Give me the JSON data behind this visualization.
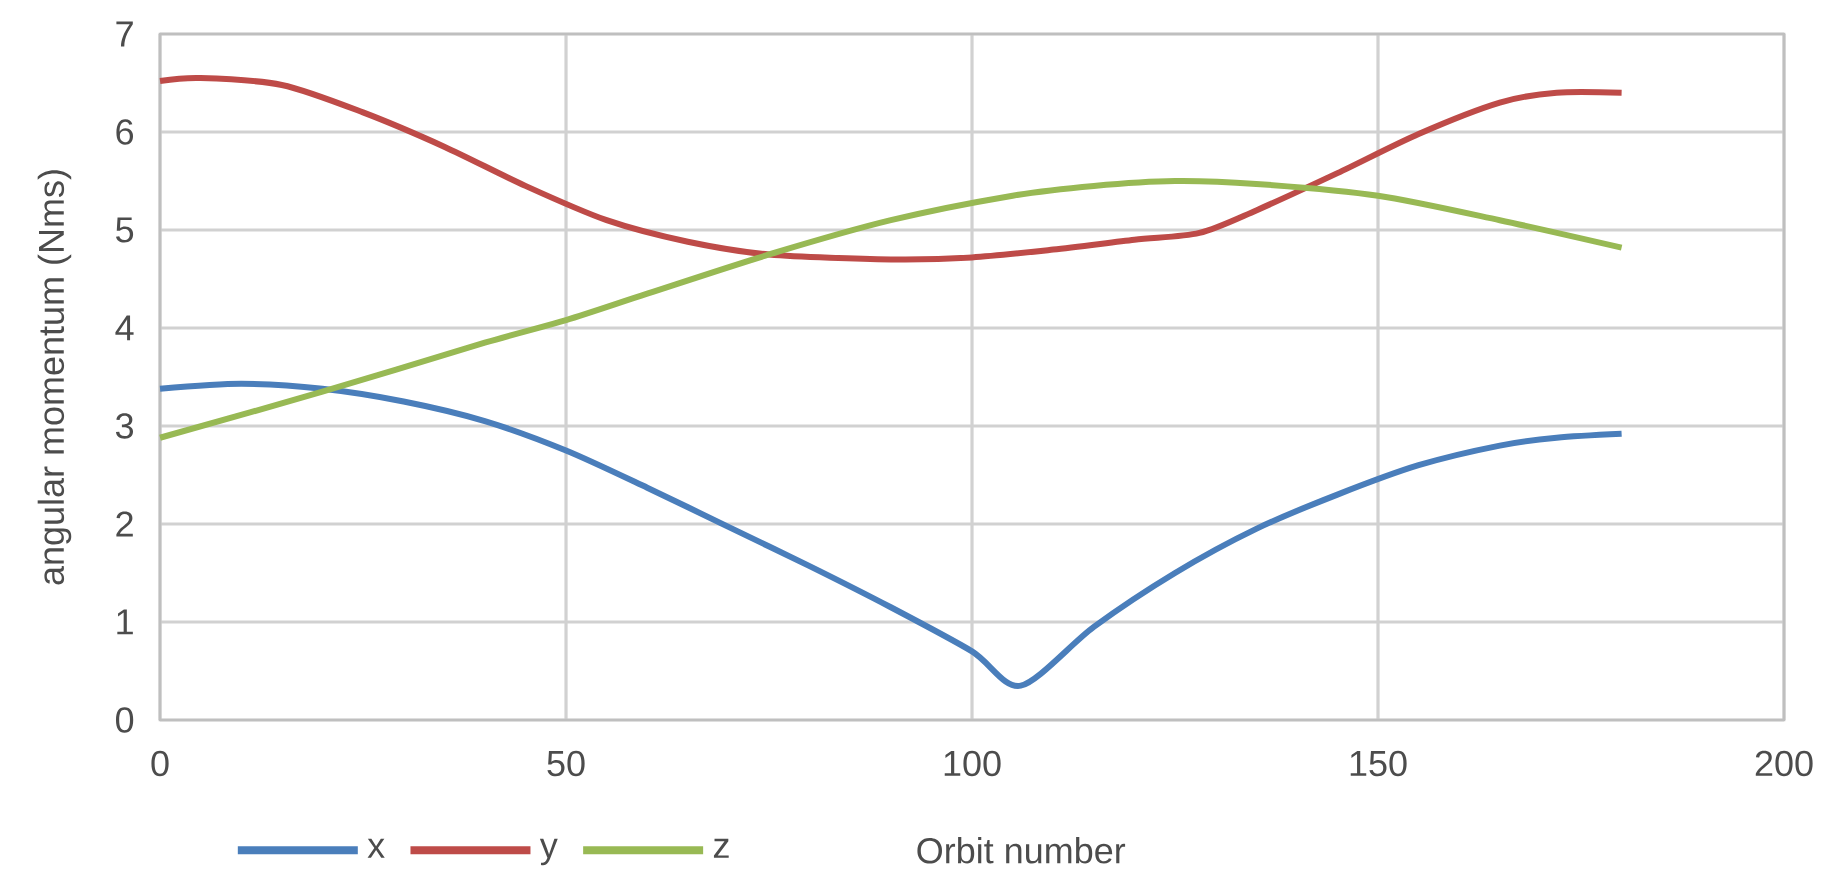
{
  "chart_data": {
    "type": "line",
    "xlabel": "Orbit number",
    "ylabel": "angular momentum (Nms)",
    "xlim": [
      0,
      200
    ],
    "xticks": [
      0,
      50,
      100,
      150,
      200
    ],
    "ylim": [
      0,
      7
    ],
    "yticks": [
      0,
      1,
      2,
      3,
      4,
      5,
      6,
      7
    ],
    "grid": true,
    "legend": "bottom",
    "marker": "none",
    "line_style": "solid",
    "series": [
      {
        "name": "x",
        "color": "#4a7ebb",
        "x": [
          0,
          10,
          20,
          30,
          40,
          50,
          60,
          70,
          80,
          90,
          100,
          106,
          115,
          125,
          135,
          145,
          155,
          165,
          172,
          180
        ],
        "values": [
          3.38,
          3.43,
          3.38,
          3.25,
          3.05,
          2.75,
          2.37,
          1.97,
          1.57,
          1.15,
          0.7,
          0.35,
          0.95,
          1.5,
          1.95,
          2.3,
          2.6,
          2.8,
          2.88,
          2.92
        ]
      },
      {
        "name": "y",
        "color": "#be4b48",
        "x": [
          0,
          5,
          15,
          25,
          35,
          45,
          55,
          65,
          75,
          90,
          100,
          110,
          120,
          128,
          135,
          145,
          155,
          165,
          172,
          180
        ],
        "values": [
          6.52,
          6.55,
          6.48,
          6.2,
          5.85,
          5.45,
          5.1,
          4.88,
          4.75,
          4.7,
          4.72,
          4.8,
          4.9,
          4.97,
          5.2,
          5.58,
          5.98,
          6.3,
          6.4,
          6.4
        ]
      },
      {
        "name": "z",
        "color": "#98b954",
        "x": [
          0,
          20,
          40,
          50,
          60,
          75,
          90,
          105,
          115,
          125,
          135,
          150,
          165,
          180
        ],
        "values": [
          2.88,
          3.35,
          3.85,
          4.08,
          4.35,
          4.75,
          5.1,
          5.35,
          5.45,
          5.5,
          5.47,
          5.35,
          5.1,
          4.82
        ]
      }
    ]
  }
}
